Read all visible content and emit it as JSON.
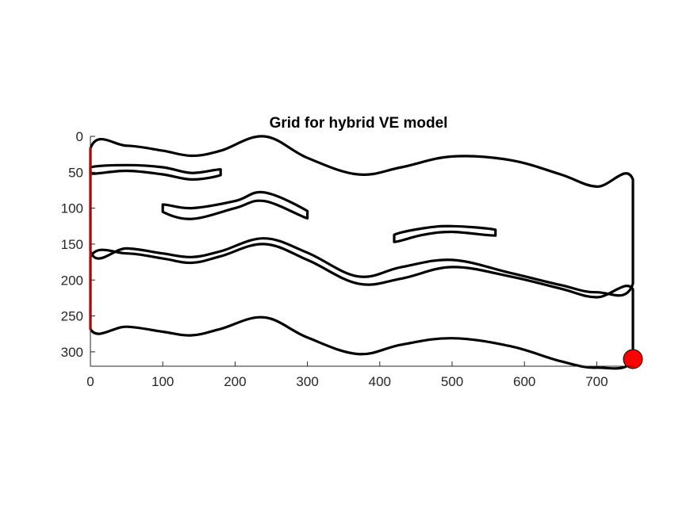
{
  "figure": {
    "title": "Grid for hybrid VE model"
  },
  "chart_data": {
    "type": "line",
    "title": "Grid for hybrid VE model",
    "xlabel": "",
    "ylabel": "",
    "xlim": [
      0,
      750
    ],
    "ylim": [
      0,
      320
    ],
    "y_reversed": true,
    "grid": false,
    "x_ticks": [
      0,
      100,
      200,
      300,
      400,
      500,
      600,
      700
    ],
    "y_ticks": [
      0,
      50,
      100,
      150,
      200,
      250,
      300
    ],
    "colors": {
      "outline": "#000000",
      "boundary": "#ff0000",
      "well": "#ff0000"
    },
    "series": [
      {
        "closed": true,
        "boundary": "outline",
        "points": [
          [
            0,
            17
          ],
          [
            50,
            13
          ],
          [
            100,
            20
          ],
          [
            140,
            27
          ],
          [
            180,
            20
          ],
          [
            240,
            0
          ],
          [
            300,
            30
          ],
          [
            370,
            53
          ],
          [
            430,
            43
          ],
          [
            500,
            28
          ],
          [
            580,
            33
          ],
          [
            650,
            53
          ],
          [
            700,
            70
          ],
          [
            750,
            60
          ],
          [
            750,
            205
          ],
          [
            700,
            217
          ],
          [
            650,
            207
          ],
          [
            580,
            190
          ],
          [
            500,
            172
          ],
          [
            430,
            182
          ],
          [
            370,
            195
          ],
          [
            300,
            162
          ],
          [
            240,
            142
          ],
          [
            180,
            160
          ],
          [
            140,
            168
          ],
          [
            100,
            163
          ],
          [
            50,
            156
          ],
          [
            0,
            160
          ]
        ]
      },
      {
        "closed": true,
        "boundary": "outline",
        "points": [
          [
            0,
            168
          ],
          [
            50,
            163
          ],
          [
            100,
            170
          ],
          [
            140,
            176
          ],
          [
            180,
            167
          ],
          [
            240,
            150
          ],
          [
            300,
            172
          ],
          [
            370,
            205
          ],
          [
            430,
            198
          ],
          [
            500,
            182
          ],
          [
            580,
            195
          ],
          [
            650,
            212
          ],
          [
            700,
            224
          ],
          [
            750,
            213
          ],
          [
            750,
            310
          ],
          [
            700,
            322
          ],
          [
            650,
            313
          ],
          [
            580,
            292
          ],
          [
            500,
            281
          ],
          [
            430,
            290
          ],
          [
            370,
            303
          ],
          [
            300,
            280
          ],
          [
            240,
            252
          ],
          [
            180,
            268
          ],
          [
            140,
            277
          ],
          [
            100,
            272
          ],
          [
            50,
            265
          ],
          [
            0,
            268
          ]
        ]
      },
      {
        "closed": true,
        "boundary": "outline",
        "points": [
          [
            0,
            43
          ],
          [
            50,
            40
          ],
          [
            100,
            43
          ],
          [
            140,
            51
          ],
          [
            180,
            46
          ],
          [
            180,
            54
          ],
          [
            140,
            60
          ],
          [
            100,
            53
          ],
          [
            50,
            48
          ],
          [
            0,
            52
          ]
        ]
      },
      {
        "closed": true,
        "boundary": "outline",
        "points": [
          [
            100,
            95
          ],
          [
            140,
            100
          ],
          [
            200,
            90
          ],
          [
            240,
            78
          ],
          [
            300,
            104
          ],
          [
            300,
            114
          ],
          [
            240,
            90
          ],
          [
            200,
            100
          ],
          [
            140,
            115
          ],
          [
            100,
            105
          ]
        ]
      },
      {
        "closed": true,
        "boundary": "outline",
        "points": [
          [
            420,
            137
          ],
          [
            460,
            128
          ],
          [
            500,
            125
          ],
          [
            560,
            130
          ],
          [
            560,
            138
          ],
          [
            500,
            133
          ],
          [
            460,
            137
          ],
          [
            420,
            147
          ]
        ]
      },
      {
        "closed": false,
        "boundary": "red",
        "points": [
          [
            0,
            17
          ],
          [
            0,
            268
          ]
        ]
      }
    ],
    "well": {
      "x": 750,
      "y": 310
    }
  }
}
